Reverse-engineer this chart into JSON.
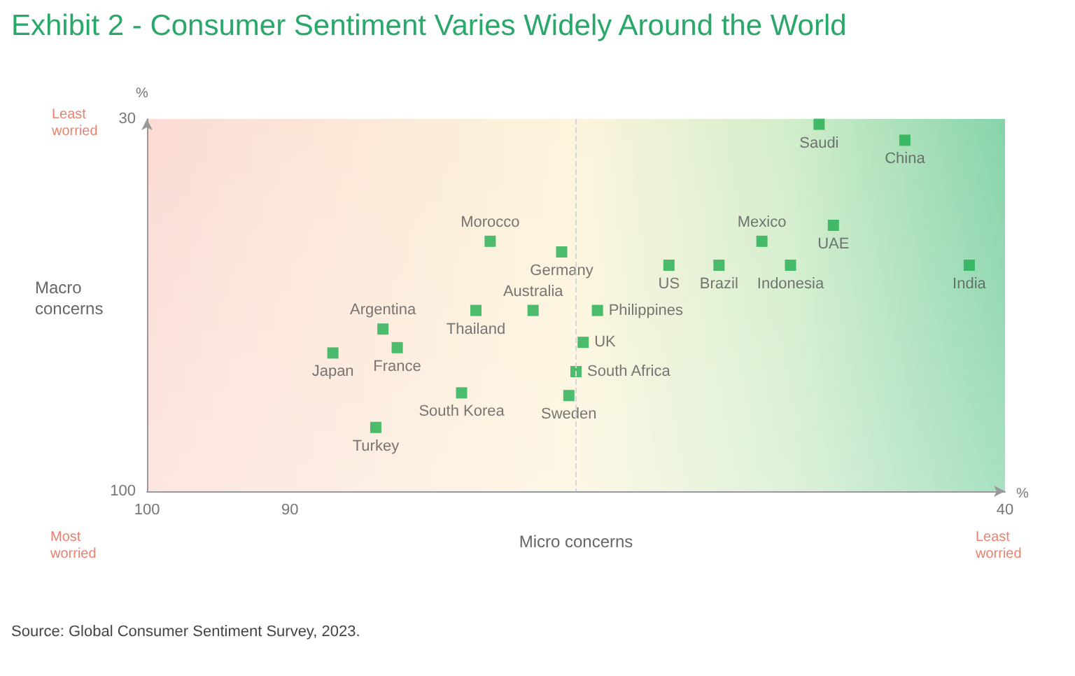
{
  "chart_data": {
    "type": "scatter",
    "title": "Exhibit 2 - Consumer Sentiment Varies Widely Around the World",
    "xlabel": "Micro concerns",
    "ylabel": "Macro concerns",
    "xlim": [
      100,
      40
    ],
    "xticks": [
      100,
      90,
      40
    ],
    "ylim": [
      100,
      30
    ],
    "yticks": [
      30,
      100
    ],
    "grid": false,
    "legend": false,
    "marker": "square",
    "ref_lines": [
      {
        "axis": "x",
        "value": 70,
        "label": null,
        "line_style": "dashed",
        "color": "#d8d8d8"
      }
    ],
    "annotations": [
      "%",
      "%",
      "Least worried",
      "Most worried",
      "Least worried",
      "Source: Global Consumer Sentiment Survey, 2023."
    ],
    "series": [
      {
        "name": "Saudi",
        "color": "#1fae4f",
        "x": [
          53
        ],
        "values": [
          31
        ]
      },
      {
        "name": "China",
        "color": "#1fae4f",
        "x": [
          47
        ],
        "values": [
          34
        ]
      },
      {
        "name": "Morocco",
        "color": "#1fae4f",
        "x": [
          76
        ],
        "values": [
          53
        ]
      },
      {
        "name": "Germany",
        "color": "#1fae4f",
        "x": [
          71
        ],
        "values": [
          55
        ]
      },
      {
        "name": "Mexico",
        "color": "#1fae4f",
        "x": [
          57
        ],
        "values": [
          53
        ]
      },
      {
        "name": "UAE",
        "color": "#1fae4f",
        "x": [
          52
        ],
        "values": [
          50
        ]
      },
      {
        "name": "US",
        "color": "#1fae4f",
        "x": [
          63.5
        ],
        "values": [
          57.5
        ]
      },
      {
        "name": "Brazil",
        "color": "#1fae4f",
        "x": [
          60
        ],
        "values": [
          57.5
        ]
      },
      {
        "name": "Indonesia",
        "color": "#1fae4f",
        "x": [
          55
        ],
        "values": [
          57.5
        ]
      },
      {
        "name": "India",
        "color": "#1fae4f",
        "x": [
          42.5
        ],
        "values": [
          57.5
        ]
      },
      {
        "name": "Australia",
        "color": "#1fae4f",
        "x": [
          73
        ],
        "values": [
          66
        ]
      },
      {
        "name": "Thailand",
        "color": "#1fae4f",
        "x": [
          77
        ],
        "values": [
          66
        ]
      },
      {
        "name": "Philippines",
        "color": "#1fae4f",
        "x": [
          68.5
        ],
        "values": [
          66
        ]
      },
      {
        "name": "Argentina",
        "color": "#1fae4f",
        "x": [
          83.5
        ],
        "values": [
          69.5
        ]
      },
      {
        "name": "France",
        "color": "#1fae4f",
        "x": [
          82.5
        ],
        "values": [
          73
        ]
      },
      {
        "name": "Japan",
        "color": "#1fae4f",
        "x": [
          87
        ],
        "values": [
          74
        ]
      },
      {
        "name": "UK",
        "color": "#1fae4f",
        "x": [
          69.5
        ],
        "values": [
          72
        ]
      },
      {
        "name": "South Africa",
        "color": "#1fae4f",
        "x": [
          70
        ],
        "values": [
          77.5
        ]
      },
      {
        "name": "South Korea",
        "color": "#1fae4f",
        "x": [
          78
        ],
        "values": [
          81.5
        ]
      },
      {
        "name": "Sweden",
        "color": "#1fae4f",
        "x": [
          70.5
        ],
        "values": [
          82
        ]
      },
      {
        "name": "Turkey",
        "color": "#1fae4f",
        "x": [
          84
        ],
        "values": [
          88
        ]
      }
    ]
  }
}
